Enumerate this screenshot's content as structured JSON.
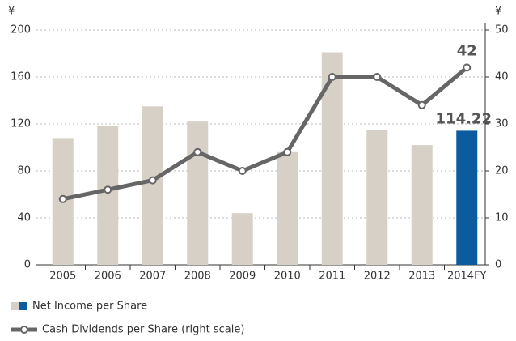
{
  "chart_data": {
    "type": "combo",
    "y_unit": "¥",
    "y2_unit": "¥",
    "categories": [
      "2005",
      "2006",
      "2007",
      "2008",
      "2009",
      "2010",
      "2011",
      "2012",
      "2013",
      "2014FY"
    ],
    "series": [
      {
        "name": "Net Income per Share",
        "type": "bar",
        "colors": [
          "#d7d0c6",
          "#d7d0c6",
          "#d7d0c6",
          "#d7d0c6",
          "#d7d0c6",
          "#d7d0c6",
          "#d7d0c6",
          "#d7d0c6",
          "#d7d0c6",
          "#0b5c9e"
        ],
        "values": [
          108,
          118,
          135,
          122,
          44,
          96,
          181,
          115,
          102,
          114.22
        ]
      },
      {
        "name": "Cash Dividends per Share (right scale)",
        "type": "line",
        "axis": "y2",
        "color": "#666666",
        "values": [
          14,
          16,
          18,
          24,
          20,
          24,
          40,
          40,
          34,
          42
        ]
      }
    ],
    "ylim": [
      0,
      200
    ],
    "yticks": [
      0,
      40,
      80,
      120,
      160,
      200
    ],
    "y2lim": [
      0,
      50
    ],
    "y2ticks": [
      0,
      10,
      20,
      30,
      40,
      50
    ],
    "grid": true
  }
}
